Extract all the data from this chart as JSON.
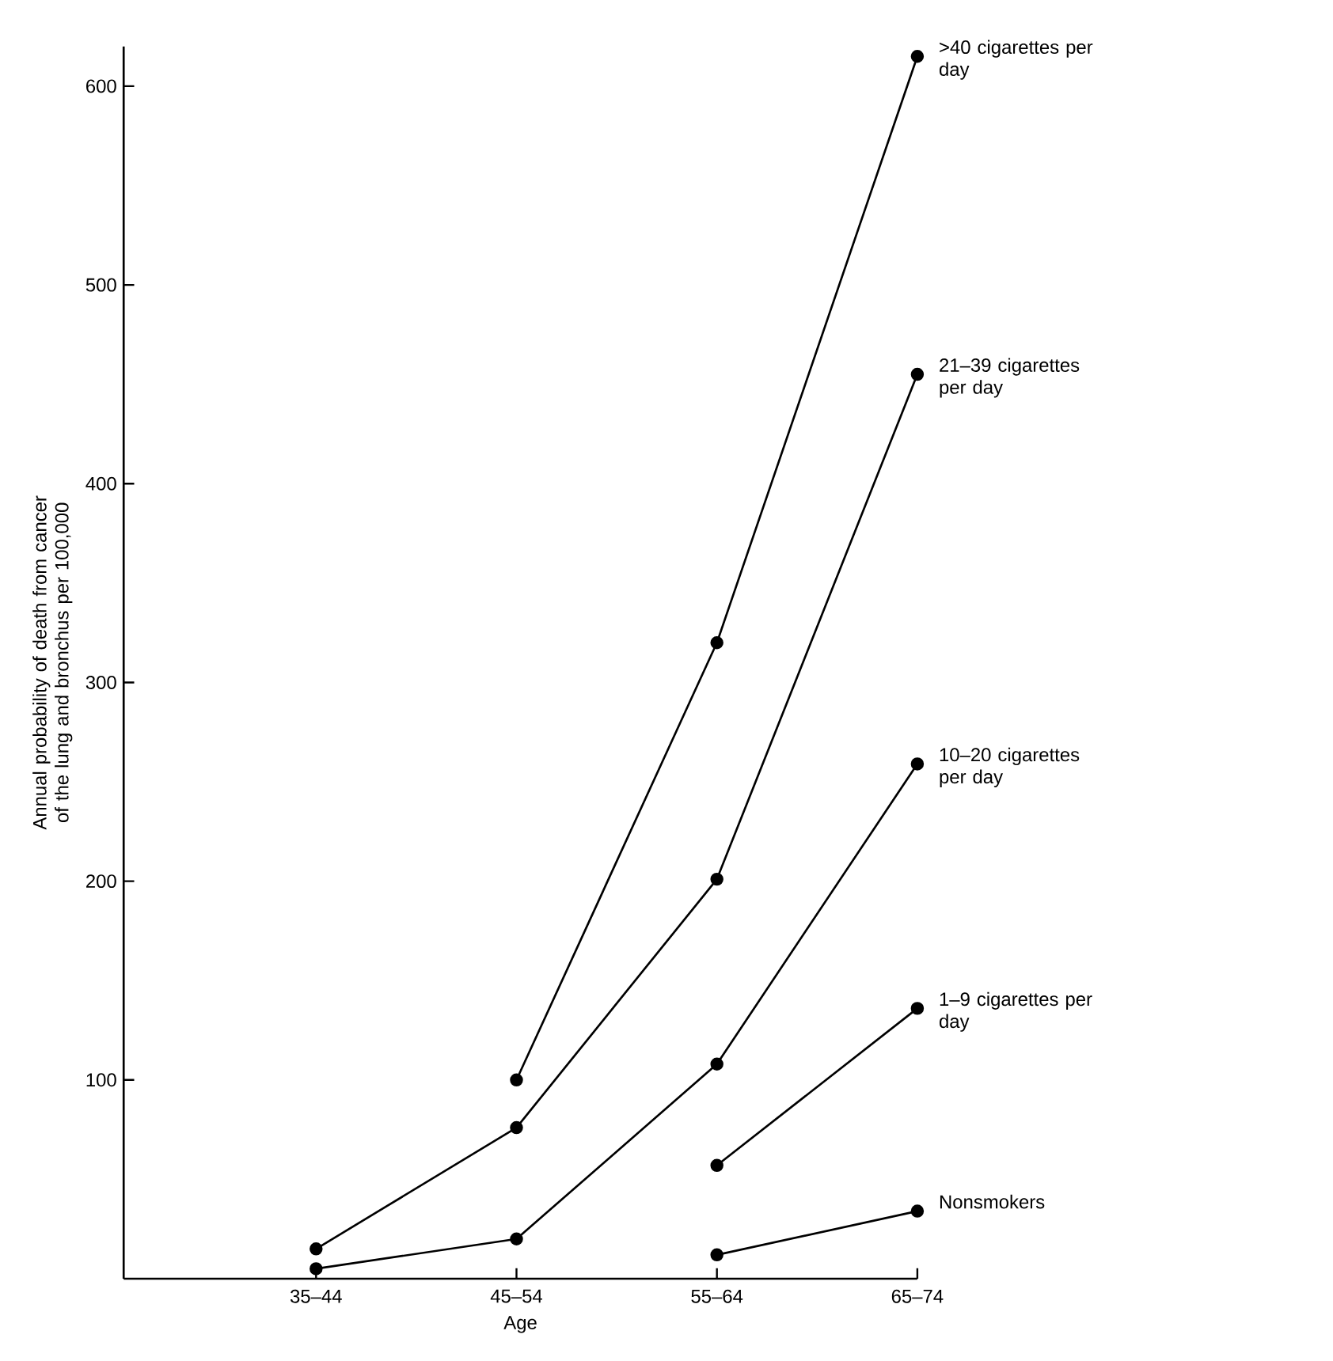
{
  "chart_data": {
    "type": "line",
    "xlabel": "Age",
    "ylabel": "Annual probability of death from cancer of the lung and bronchus per 100,000",
    "categories": [
      "35–44",
      "45–54",
      "55–64",
      "65–74"
    ],
    "series": [
      {
        "name": ">40 cigarettes per day",
        "color": "#000000",
        "values": [
          null,
          100,
          320,
          615
        ]
      },
      {
        "name": "21–39 cigarettes per day",
        "color": "#000000",
        "values": [
          15,
          76,
          201,
          455
        ]
      },
      {
        "name": "10–20 cigarettes per day",
        "color": "#000000",
        "values": [
          5,
          20,
          108,
          259
        ]
      },
      {
        "name": "1–9 cigarettes per day",
        "color": "#000000",
        "values": [
          null,
          null,
          57,
          136
        ]
      },
      {
        "name": "Nonsmokers",
        "color": "#000000",
        "values": [
          null,
          null,
          12,
          34
        ]
      }
    ],
    "ylim": [
      0,
      620
    ],
    "yticks": [
      100,
      200,
      300,
      400,
      500,
      600
    ],
    "marker": "circle",
    "line_style": "solid"
  }
}
